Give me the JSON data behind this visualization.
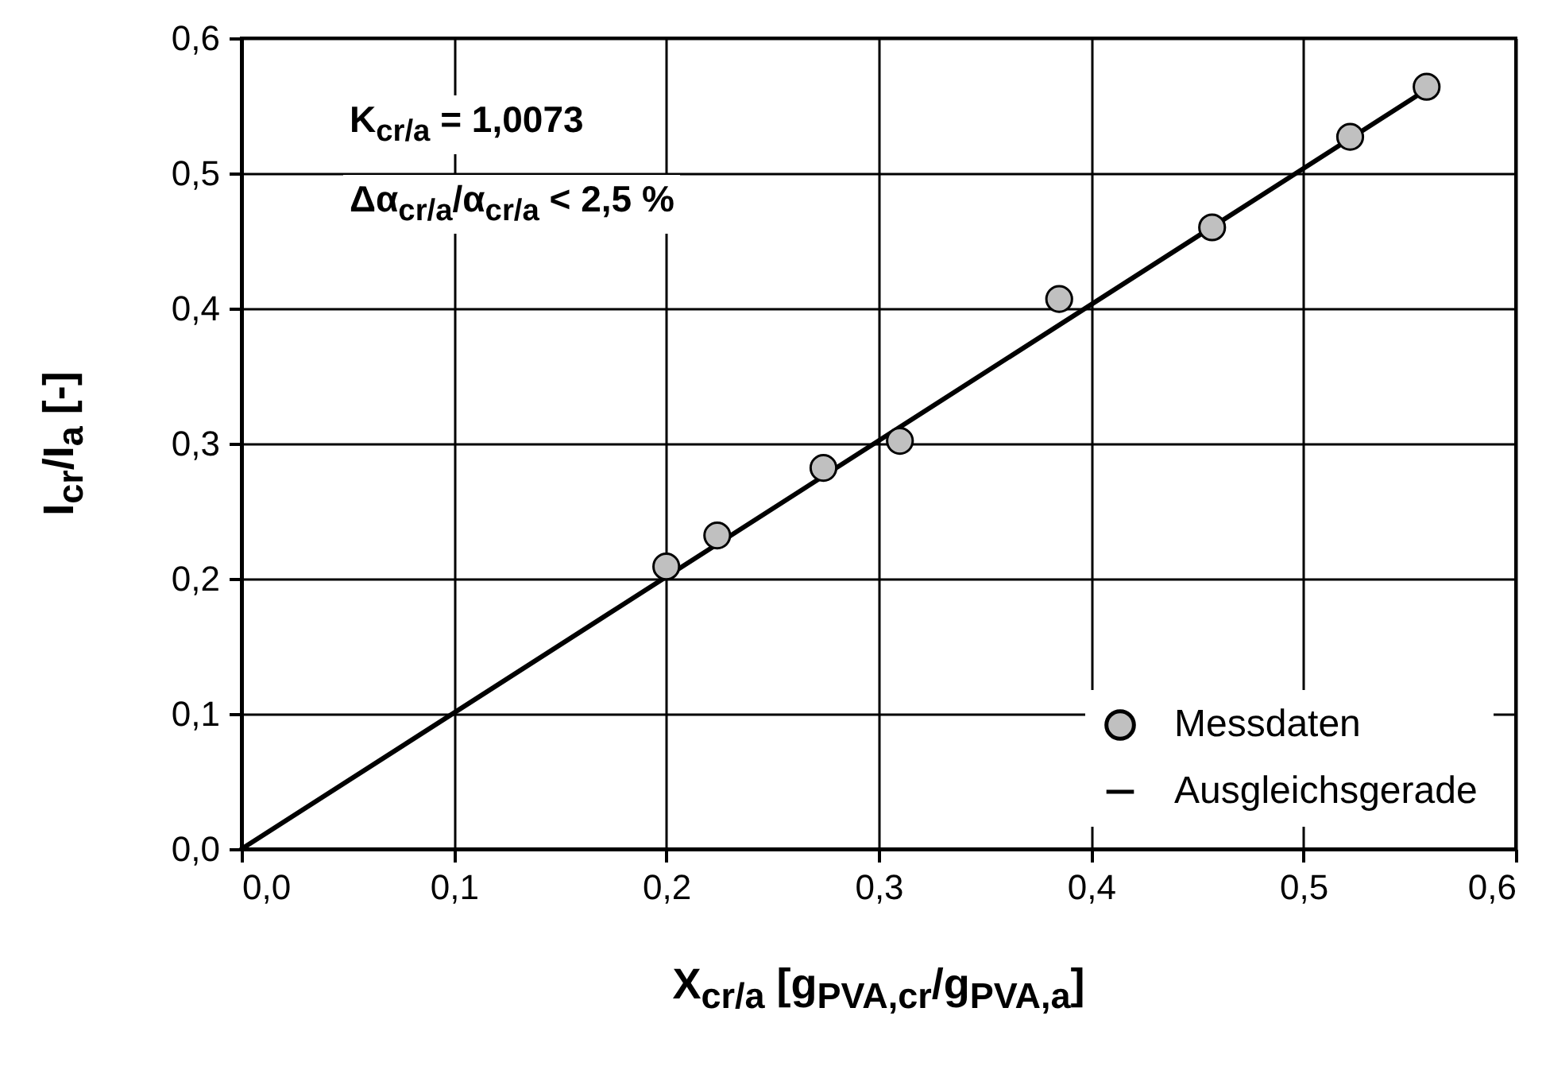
{
  "chart_data": {
    "type": "scatter",
    "xlabel": "X$_{cr/a}$ [g$_{PVA,cr}$/g$_{PVA,a}$]",
    "ylabel": "I$_{cr}$/I$_{a}$ [-]",
    "annotations": [
      "K$_{cr/a}$ = 1,0073",
      "Δα$_{cr/a}$/α$_{cr/a}$ < 2,5 %"
    ],
    "series": [
      {
        "name": "Messdaten",
        "type": "scatter",
        "color": "#c0c0c0",
        "marker": "circle",
        "x": [
          0.2,
          0.224,
          0.274,
          0.31,
          0.385,
          0.457,
          0.522,
          0.558
        ],
        "values": [
          0.209,
          0.232,
          0.282,
          0.302,
          0.407,
          0.46,
          0.527,
          0.564
        ]
      },
      {
        "name": "Ausgleichsgerade",
        "type": "line",
        "color": "#000000",
        "line_style": "solid",
        "x": [
          0,
          0.56
        ],
        "values": [
          0,
          0.564
        ]
      }
    ],
    "xlim": [
      0,
      0.6
    ],
    "ylim": [
      0,
      0.6
    ],
    "xticks": [
      {
        "value": 0,
        "label": "0,0"
      },
      {
        "value": 0.1,
        "label": "0,1"
      },
      {
        "value": 0.2,
        "label": "0,2"
      },
      {
        "value": 0.3,
        "label": "0,3"
      },
      {
        "value": 0.4,
        "label": "0,4"
      },
      {
        "value": 0.5,
        "label": "0,5"
      },
      {
        "value": 0.6,
        "label": "0,6"
      }
    ],
    "yticks": [
      {
        "value": 0,
        "label": "0,0"
      },
      {
        "value": 0.1,
        "label": "0,1"
      },
      {
        "value": 0.2,
        "label": "0,2"
      },
      {
        "value": 0.3,
        "label": "0,3"
      },
      {
        "value": 0.4,
        "label": "0,4"
      },
      {
        "value": 0.5,
        "label": "0,5"
      },
      {
        "value": 0.6,
        "label": "0,6"
      }
    ],
    "grid": true,
    "legend": "bottom right"
  }
}
